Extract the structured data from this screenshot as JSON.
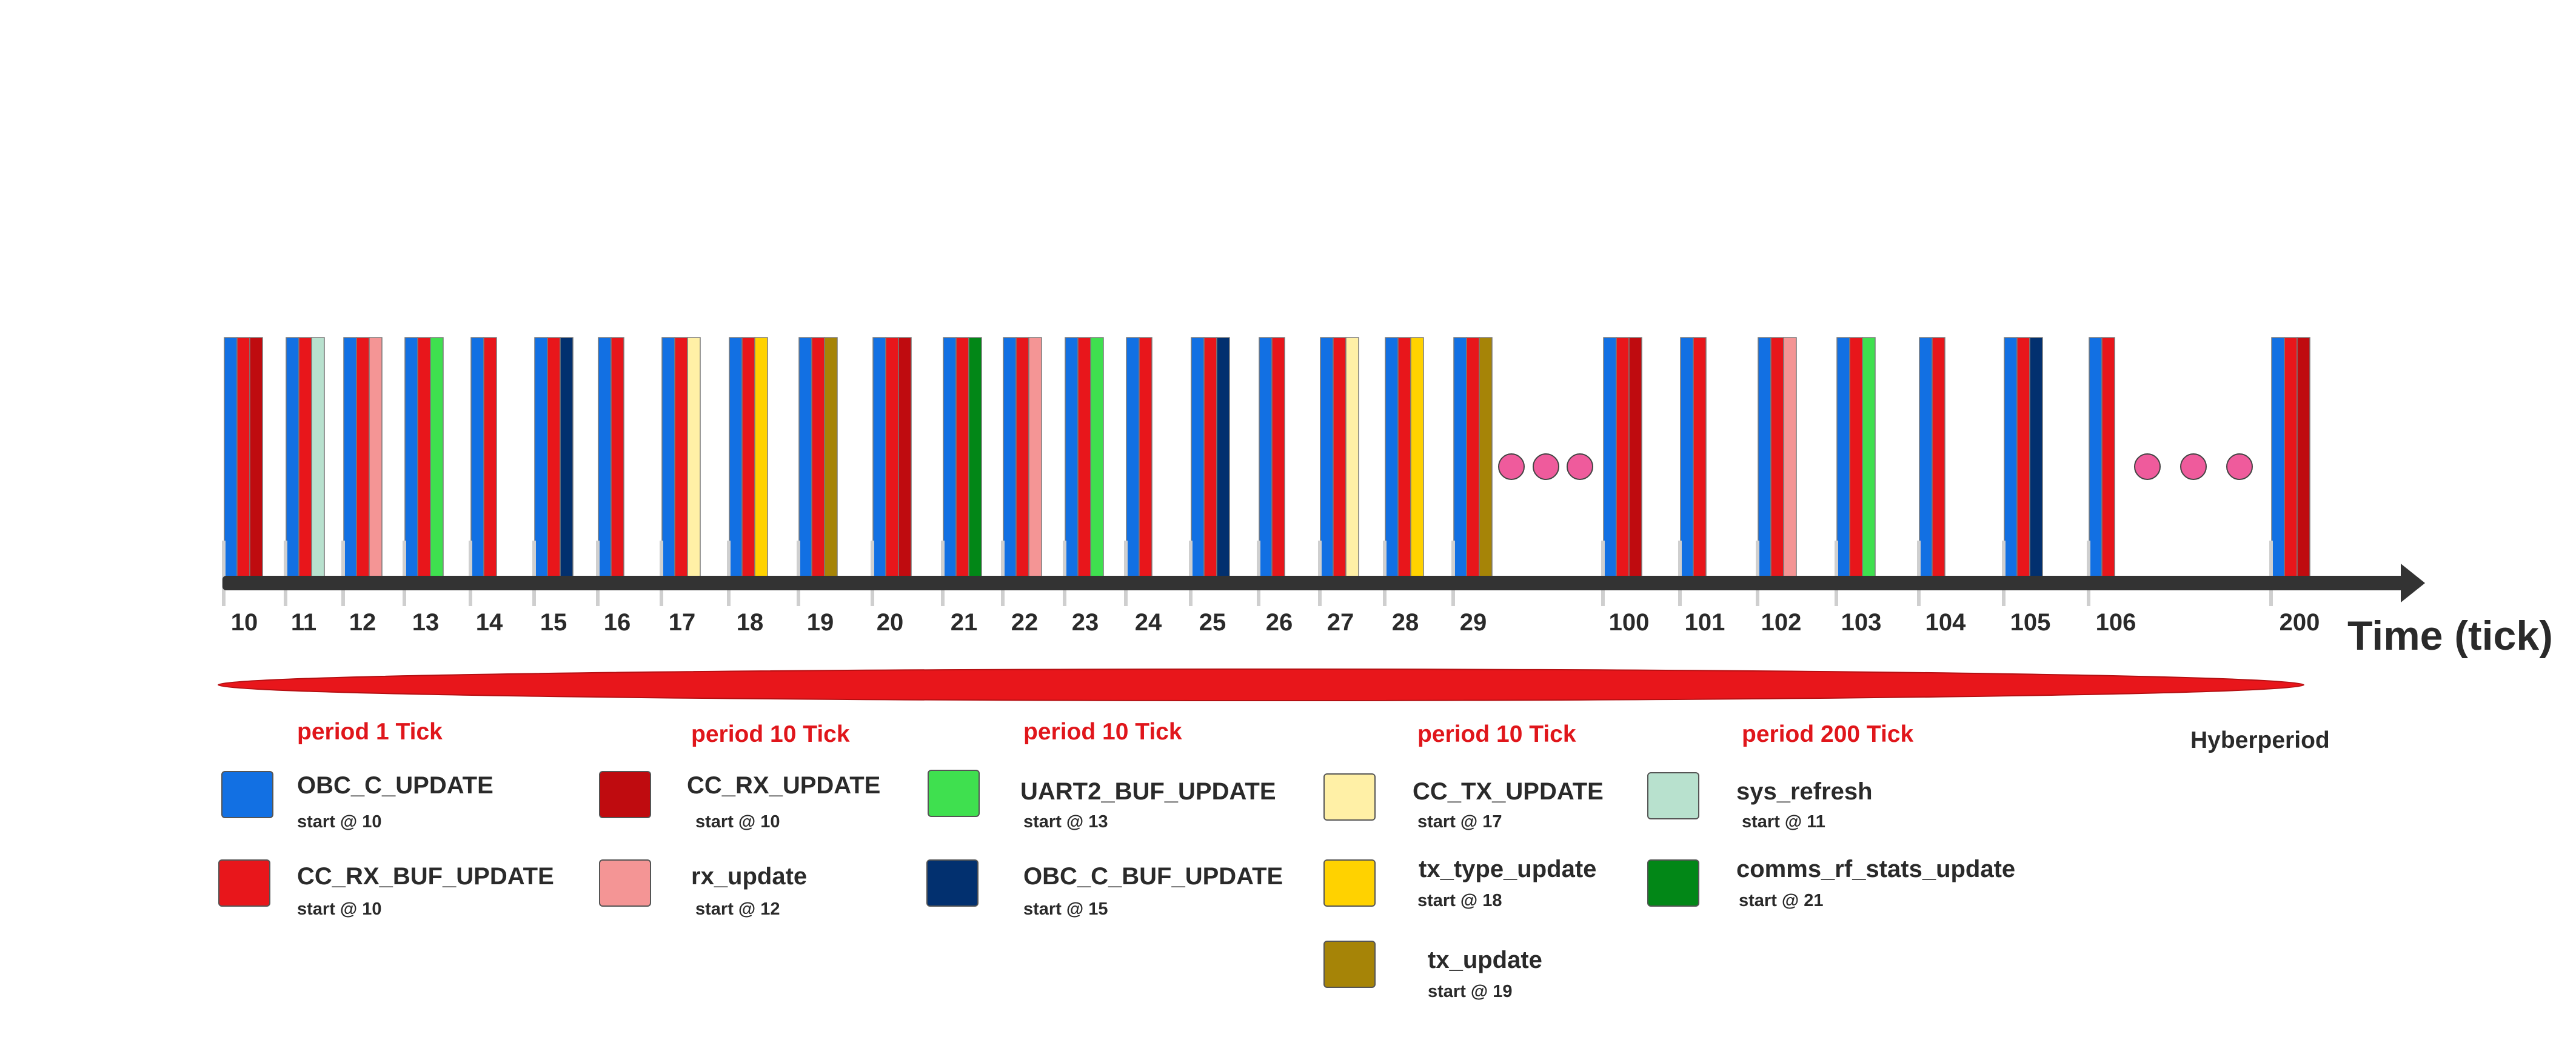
{
  "axis_label": "Time (tick)",
  "hyperperiod_label": "Hyberperiod",
  "colors": {
    "OBC_C_UPDATE": "#1270e3",
    "CC_RX_BUF_UPDATE": "#e8161b",
    "CC_RX_UPDATE": "#bf0b0f",
    "rx_update": "#f49595",
    "UART2_BUF_UPDATE": "#3fe04f",
    "OBC_C_BUF_UPDATE": "#02306f",
    "CC_TX_UPDATE": "#fff0a6",
    "tx_type_update": "#ffd200",
    "tx_update": "#a68407",
    "sys_refresh": "#b8e1ce",
    "comms_rf_stats_update": "#028717",
    "axis": "#333333",
    "ellipsis_dot": "#ef5b9c",
    "hyperperiod_bar": "#e8161b"
  },
  "ticks": [
    {
      "label": "10",
      "tasks": [
        "OBC_C_UPDATE",
        "CC_RX_BUF_UPDATE",
        "CC_RX_UPDATE"
      ]
    },
    {
      "label": "11",
      "tasks": [
        "OBC_C_UPDATE",
        "CC_RX_BUF_UPDATE",
        "sys_refresh"
      ]
    },
    {
      "label": "12",
      "tasks": [
        "OBC_C_UPDATE",
        "CC_RX_BUF_UPDATE",
        "rx_update"
      ]
    },
    {
      "label": "13",
      "tasks": [
        "OBC_C_UPDATE",
        "CC_RX_BUF_UPDATE",
        "UART2_BUF_UPDATE"
      ]
    },
    {
      "label": "14",
      "tasks": [
        "OBC_C_UPDATE",
        "CC_RX_BUF_UPDATE"
      ]
    },
    {
      "label": "15",
      "tasks": [
        "OBC_C_UPDATE",
        "CC_RX_BUF_UPDATE",
        "OBC_C_BUF_UPDATE"
      ]
    },
    {
      "label": "16",
      "tasks": [
        "OBC_C_UPDATE",
        "CC_RX_BUF_UPDATE"
      ]
    },
    {
      "label": "17",
      "tasks": [
        "OBC_C_UPDATE",
        "CC_RX_BUF_UPDATE",
        "CC_TX_UPDATE"
      ]
    },
    {
      "label": "18",
      "tasks": [
        "OBC_C_UPDATE",
        "CC_RX_BUF_UPDATE",
        "tx_type_update"
      ]
    },
    {
      "label": "19",
      "tasks": [
        "OBC_C_UPDATE",
        "CC_RX_BUF_UPDATE",
        "tx_update"
      ]
    },
    {
      "label": "20",
      "tasks": [
        "OBC_C_UPDATE",
        "CC_RX_BUF_UPDATE",
        "CC_RX_UPDATE"
      ]
    },
    {
      "label": "21",
      "tasks": [
        "OBC_C_UPDATE",
        "CC_RX_BUF_UPDATE",
        "comms_rf_stats_update"
      ]
    },
    {
      "label": "22",
      "tasks": [
        "OBC_C_UPDATE",
        "CC_RX_BUF_UPDATE",
        "rx_update"
      ]
    },
    {
      "label": "23",
      "tasks": [
        "OBC_C_UPDATE",
        "CC_RX_BUF_UPDATE",
        "UART2_BUF_UPDATE"
      ]
    },
    {
      "label": "24",
      "tasks": [
        "OBC_C_UPDATE",
        "CC_RX_BUF_UPDATE"
      ]
    },
    {
      "label": "25",
      "tasks": [
        "OBC_C_UPDATE",
        "CC_RX_BUF_UPDATE",
        "OBC_C_BUF_UPDATE"
      ]
    },
    {
      "label": "26",
      "tasks": [
        "OBC_C_UPDATE",
        "CC_RX_BUF_UPDATE"
      ]
    },
    {
      "label": "27",
      "tasks": [
        "OBC_C_UPDATE",
        "CC_RX_BUF_UPDATE",
        "CC_TX_UPDATE"
      ]
    },
    {
      "label": "28",
      "tasks": [
        "OBC_C_UPDATE",
        "CC_RX_BUF_UPDATE",
        "tx_type_update"
      ]
    },
    {
      "label": "29",
      "tasks": [
        "OBC_C_UPDATE",
        "CC_RX_BUF_UPDATE",
        "tx_update"
      ]
    },
    {
      "label": "100",
      "tasks": [
        "OBC_C_UPDATE",
        "CC_RX_BUF_UPDATE",
        "CC_RX_UPDATE"
      ]
    },
    {
      "label": "101",
      "tasks": [
        "OBC_C_UPDATE",
        "CC_RX_BUF_UPDATE"
      ]
    },
    {
      "label": "102",
      "tasks": [
        "OBC_C_UPDATE",
        "CC_RX_BUF_UPDATE",
        "rx_update"
      ]
    },
    {
      "label": "103",
      "tasks": [
        "OBC_C_UPDATE",
        "CC_RX_BUF_UPDATE",
        "UART2_BUF_UPDATE"
      ]
    },
    {
      "label": "104",
      "tasks": [
        "OBC_C_UPDATE",
        "CC_RX_BUF_UPDATE"
      ]
    },
    {
      "label": "105",
      "tasks": [
        "OBC_C_UPDATE",
        "CC_RX_BUF_UPDATE",
        "OBC_C_BUF_UPDATE"
      ]
    },
    {
      "label": "106",
      "tasks": [
        "OBC_C_UPDATE",
        "CC_RX_BUF_UPDATE"
      ]
    },
    {
      "label": "200",
      "tasks": [
        "OBC_C_UPDATE",
        "CC_RX_BUF_UPDATE",
        "CC_RX_UPDATE"
      ]
    }
  ],
  "legend": {
    "periods": [
      "period 1 Tick",
      "period 10 Tick",
      "period 10 Tick",
      "period 10 Tick",
      "period 200 Tick"
    ],
    "items": [
      {
        "task": "OBC_C_UPDATE",
        "start": "start @ 10"
      },
      {
        "task": "CC_RX_BUF_UPDATE",
        "start": "start @ 10"
      },
      {
        "task": "CC_RX_UPDATE",
        "start": "start @ 10"
      },
      {
        "task": "rx_update",
        "start": "start @ 12"
      },
      {
        "task": "UART2_BUF_UPDATE",
        "start": "start @ 13"
      },
      {
        "task": "OBC_C_BUF_UPDATE",
        "start": "start @ 15"
      },
      {
        "task": "CC_TX_UPDATE",
        "start": "start @ 17"
      },
      {
        "task": "tx_type_update",
        "start": "start @ 18"
      },
      {
        "task": "tx_update",
        "start": "start @ 19"
      },
      {
        "task": "sys_refresh",
        "start": "start @ 11"
      },
      {
        "task": "comms_rf_stats_update",
        "start": "start @ 21"
      }
    ]
  }
}
